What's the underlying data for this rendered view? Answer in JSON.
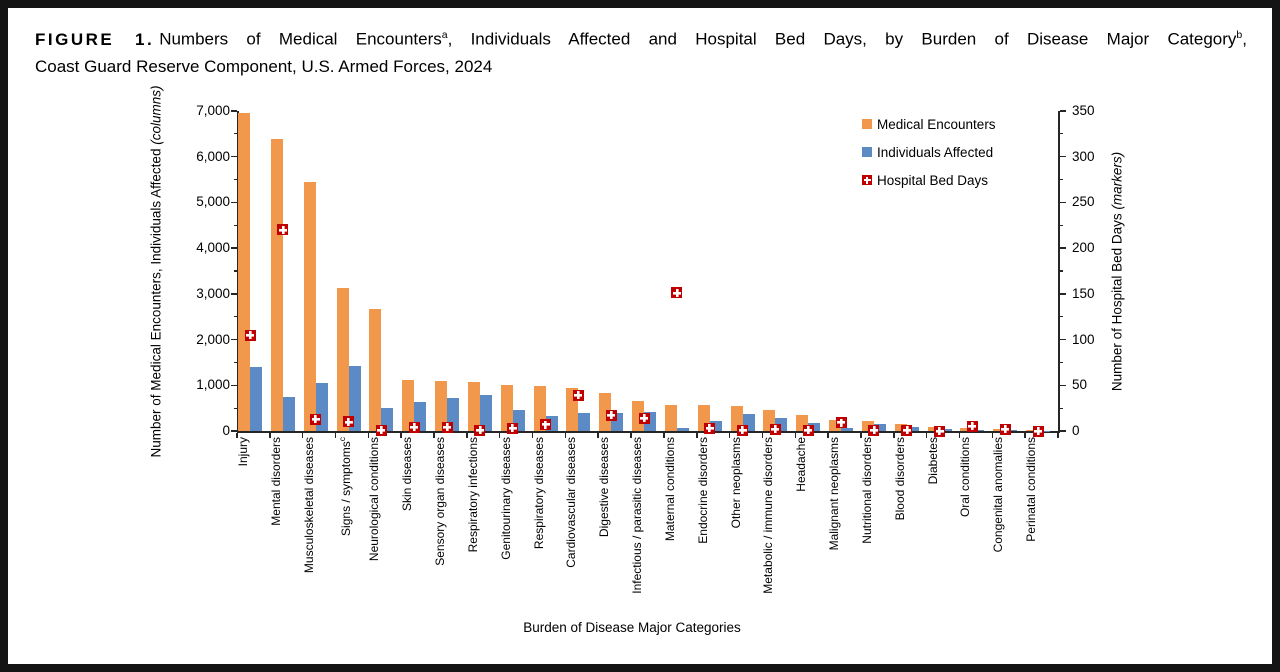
{
  "figure": {
    "figure_label": "FIGURE 1.",
    "title_part1": "Numbers of Medical Encounters",
    "sup_a": "a",
    "title_part2": ", Individuals Affected and Hospital Bed Days, by Burden of Disease Major Category",
    "sup_b": "b",
    "title_part3": ",",
    "title_line2": "Coast Guard Reserve Component, U.S. Armed Forces, 2024"
  },
  "axis_titles": {
    "left_prefix": "Number of Medical Encounters, Individuals Affected ",
    "left_italic": "(columns)",
    "right_prefix": "Number of Hospital Bed Days ",
    "right_italic": "(markers)",
    "x": "Burden of Disease Major Categories"
  },
  "chart_data": {
    "type": "bar",
    "subtype": "grouped columns with point markers on secondary axis",
    "title": "Numbers of Medical Encounters, Individuals Affected and Hospital Bed Days, by Burden of Disease Major Category, Coast Guard Reserve Component, U.S. Armed Forces, 2024",
    "xlabel": "Burden of Disease Major Categories",
    "ylabel_left": "Number of Medical Encounters, Individuals Affected (columns)",
    "ylabel_right": "Number of Hospital Bed Days (markers)",
    "grid": false,
    "legend_position": "inside upper right",
    "categories": [
      "Injury",
      "Mental disorders",
      "Musculoskeletal diseases",
      "Signs / symptoms",
      "Neurological conditions",
      "Skin diseases",
      "Sensory organ diseases",
      "Respiratory infections",
      "Genitourinary diseases",
      "Respiratory diseases",
      "Cardiovascular diseases",
      "Digestive diseases",
      "Infectious / parasitic diseases",
      "Maternal conditions",
      "Endocrine disorders",
      "Other neoplasms",
      "Metabolic / immune disorders",
      "Headache",
      "Malignant neoplasms",
      "Nutritional disorders",
      "Blood disorders",
      "Diabetes",
      "Oral conditions",
      "Congenital anomalies",
      "Perinatal conditions"
    ],
    "category_superscripts": [
      "",
      "",
      "",
      "c",
      "",
      "",
      "",
      "",
      "",
      "",
      "",
      "",
      "",
      "",
      "",
      "",
      "",
      "",
      "",
      "",
      "",
      "",
      "",
      "",
      ""
    ],
    "left_axis": {
      "min": 0,
      "max": 7000,
      "major_step": 1000,
      "minor_step": 500,
      "tick_labels": [
        "0",
        "1,000",
        "2,000",
        "3,000",
        "4,000",
        "5,000",
        "6,000",
        "7,000"
      ]
    },
    "right_axis": {
      "min": 0,
      "max": 350,
      "major_step": 50,
      "minor_step": 25,
      "tick_labels": [
        "0",
        "50",
        "100",
        "150",
        "200",
        "250",
        "300",
        "350"
      ]
    },
    "series": [
      {
        "name": "Medical Encounters",
        "type": "column",
        "axis": "left",
        "color": "#F2984C",
        "values": [
          6950,
          6380,
          5440,
          3120,
          2670,
          1115,
          1090,
          1080,
          1010,
          985,
          950,
          840,
          655,
          575,
          560,
          540,
          470,
          350,
          250,
          225,
          150,
          95,
          60,
          42,
          15
        ]
      },
      {
        "name": "Individuals Affected",
        "type": "column",
        "axis": "left",
        "color": "#5B8AC5",
        "values": [
          1390,
          735,
          1040,
          1420,
          510,
          640,
          715,
          790,
          470,
          330,
          390,
          390,
          405,
          75,
          210,
          375,
          290,
          175,
          60,
          150,
          80,
          45,
          22,
          15,
          8
        ]
      },
      {
        "name": "Hospital Bed Days",
        "type": "marker",
        "axis": "right",
        "color": "#C00000",
        "values": [
          105,
          220,
          13,
          10,
          1,
          4,
          4,
          1,
          3,
          7,
          39,
          17,
          14,
          151,
          3,
          1,
          2,
          1,
          9,
          1,
          1,
          0,
          5,
          2,
          0
        ]
      }
    ]
  }
}
